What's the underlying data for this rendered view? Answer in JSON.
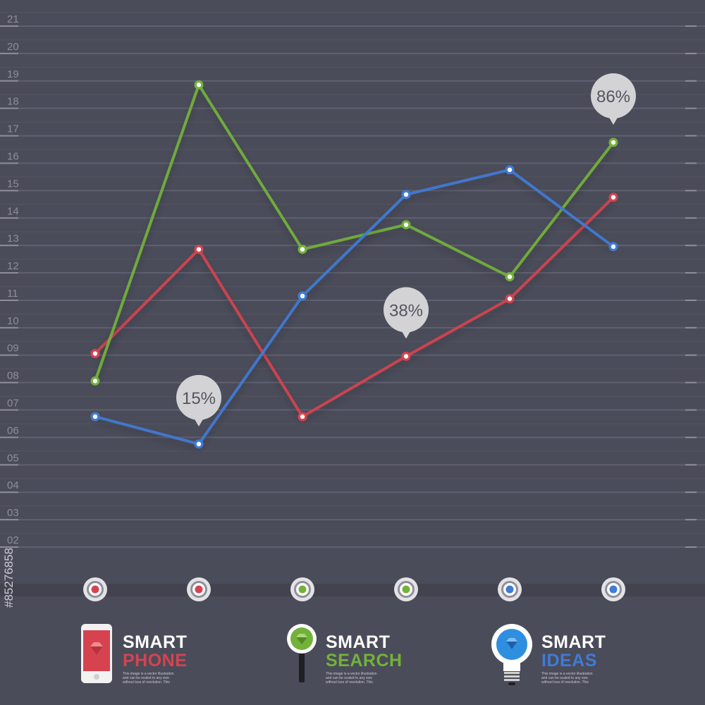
{
  "colors": {
    "background": "#4b4c5a",
    "grid": "#5f6070",
    "red": "#d6434f",
    "green": "#73b23a",
    "blue": "#3f7bd6",
    "bubble": "#d3d3d5",
    "bubble_text": "#555560"
  },
  "chart_data": {
    "type": "line",
    "ylim": [
      1,
      21
    ],
    "y_tick_labels": [
      "02",
      "03",
      "04",
      "05",
      "06",
      "07",
      "08",
      "09",
      "10",
      "11",
      "12",
      "13",
      "14",
      "15",
      "16",
      "17",
      "18",
      "19",
      "20",
      "21"
    ],
    "x": [
      1,
      2,
      3,
      4,
      5,
      6
    ],
    "series": [
      {
        "color": "red",
        "values": [
          8.8,
          12.6,
          6.5,
          8.7,
          10.8,
          14.5
        ]
      },
      {
        "color": "green",
        "values": [
          7.8,
          18.6,
          12.6,
          13.5,
          11.6,
          16.5
        ]
      },
      {
        "color": "blue",
        "values": [
          6.5,
          5.5,
          10.9,
          14.6,
          15.5,
          12.7
        ]
      }
    ],
    "x_markers": [
      "red",
      "red",
      "green",
      "green",
      "blue",
      "blue"
    ],
    "annotations": [
      {
        "label": "15%",
        "series": 2,
        "index": 1
      },
      {
        "label": "38%",
        "series": 0,
        "index": 3
      },
      {
        "label": "86%",
        "series": 1,
        "index": 5
      }
    ],
    "legend_placement": "bottom"
  },
  "legend": [
    {
      "line1": "SMART",
      "line2": "PHONE",
      "color": "red",
      "icon": "smartphone-icon",
      "desc": "This image is a vector illustration and can be scaled to any size without loss of resolution. This"
    },
    {
      "line1": "SMART",
      "line2": "SEARCH",
      "color": "green",
      "icon": "magnifier-icon",
      "desc": "This image is a vector illustration and can be scaled to any size without loss of resolution. This"
    },
    {
      "line1": "SMART",
      "line2": "IDEAS",
      "color": "blue",
      "icon": "light-bulb-icon",
      "desc": "This image is a vector illustration and can be scaled to any size without loss of resolution. This"
    }
  ],
  "stock_id": "#85276858"
}
